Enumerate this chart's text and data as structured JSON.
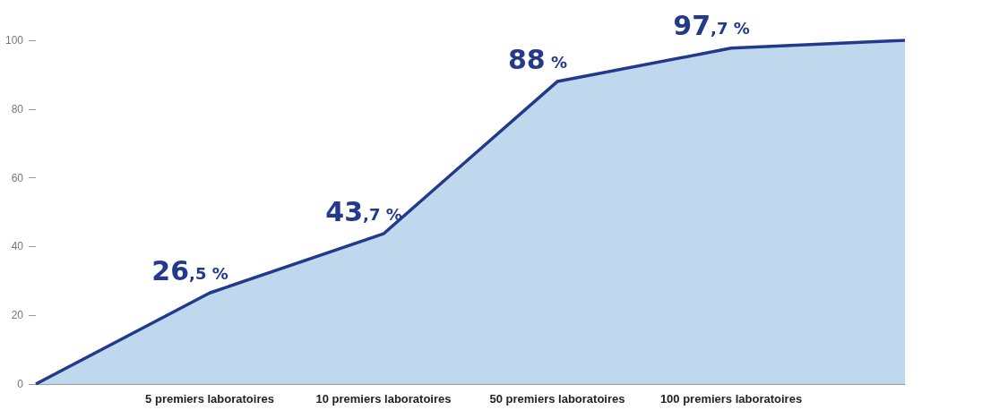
{
  "chart_data": {
    "type": "area",
    "categories": [
      null,
      "5 premiers laboratoires",
      "10 premiers laboratoires",
      "50 premiers laboratoires",
      "100 premiers laboratoires",
      null
    ],
    "series": [
      {
        "color": "#233a8c",
        "values": [
          0,
          26.5,
          43.7,
          88,
          97.7,
          100
        ],
        "value_labels": [
          null,
          "26,5 %",
          "43,7 %",
          "88 %",
          "97,7 %",
          null
        ]
      }
    ],
    "ylim": [
      0,
      100
    ],
    "yticks": [
      0,
      20,
      40,
      60,
      80,
      100
    ],
    "grid": false,
    "marker": "none",
    "line_style": "solid"
  }
}
